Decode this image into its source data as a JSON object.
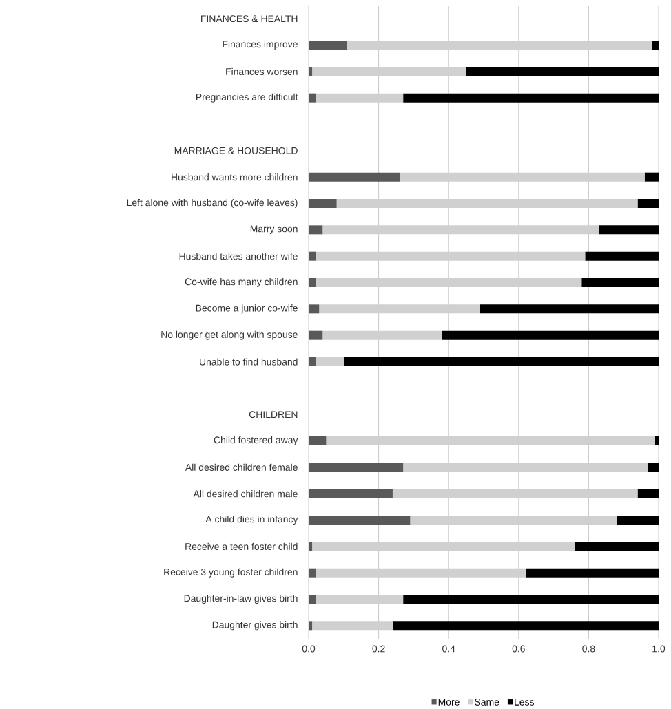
{
  "chart_data": {
    "type": "bar",
    "orientation": "horizontal",
    "stacked": true,
    "categories": [
      "FINANCES & HEALTH",
      "Finances improve",
      "Finances worsen",
      "Pregnancies are difficult",
      null,
      "MARRIAGE & HOUSEHOLD",
      "Husband wants more children",
      "Left alone with husband (co-wife leaves)",
      "Marry soon",
      "Husband takes another wife",
      "Co-wife has many children",
      "Become a junior co-wife",
      "No longer get along with spouse",
      "Unable to find husband",
      null,
      "CHILDREN",
      "Child fostered away",
      "All desired children female",
      "All desired children male",
      "A child dies in infancy",
      "Receive a teen foster child",
      "Receive 3 young foster children",
      "Daughter-in-law gives birth",
      "Daughter gives birth"
    ],
    "series": [
      {
        "name": "More",
        "color": "#595959",
        "values": [
          null,
          0.11,
          0.01,
          0.02,
          null,
          null,
          0.26,
          0.08,
          0.04,
          0.02,
          0.02,
          0.03,
          0.04,
          0.02,
          null,
          null,
          0.05,
          0.27,
          0.24,
          0.29,
          0.01,
          0.02,
          0.02,
          0.01
        ]
      },
      {
        "name": "Same",
        "color": "#d0d0d0",
        "values": [
          null,
          0.87,
          0.44,
          0.25,
          null,
          null,
          0.7,
          0.86,
          0.79,
          0.77,
          0.76,
          0.46,
          0.34,
          0.08,
          null,
          null,
          0.94,
          0.7,
          0.7,
          0.59,
          0.75,
          0.6,
          0.25,
          0.23
        ]
      },
      {
        "name": "Less",
        "color": "#000000",
        "values": [
          null,
          0.02,
          0.55,
          0.73,
          null,
          null,
          0.04,
          0.06,
          0.17,
          0.21,
          0.22,
          0.51,
          0.62,
          0.9,
          null,
          null,
          0.01,
          0.03,
          0.06,
          0.12,
          0.24,
          0.38,
          0.73,
          0.76
        ]
      }
    ],
    "xlim": [
      0,
      1
    ],
    "xticks": [
      {
        "value": 0,
        "label": "0.0"
      },
      {
        "value": 0.2,
        "label": "0.2"
      },
      {
        "value": 0.4,
        "label": "0.4"
      },
      {
        "value": 0.6,
        "label": "0.6"
      },
      {
        "value": 0.8,
        "label": "0.8"
      },
      {
        "value": 1,
        "label": "1.0"
      }
    ],
    "grid": "x",
    "legend": "bottom"
  }
}
